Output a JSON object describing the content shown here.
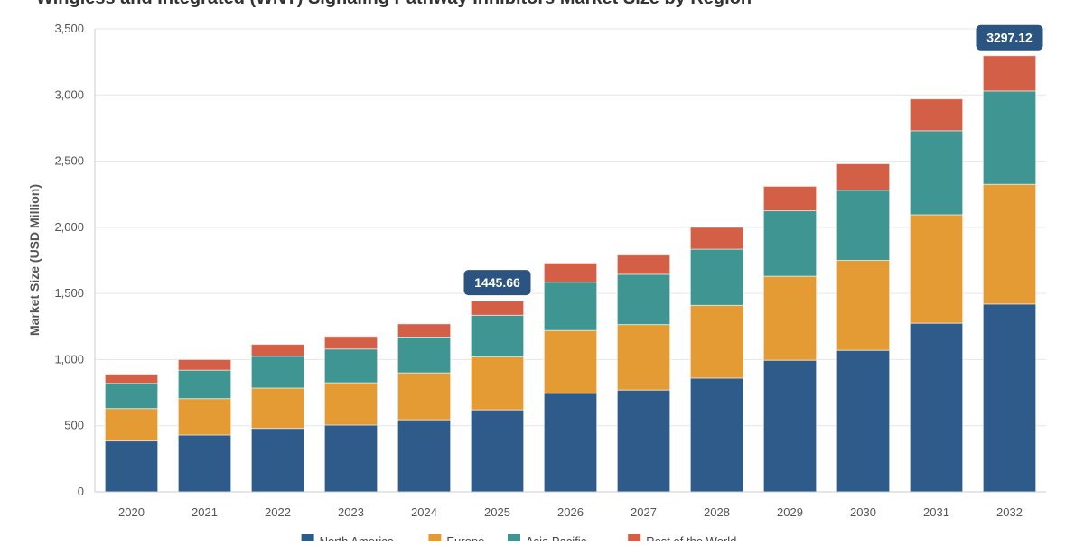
{
  "chart_data": {
    "type": "bar",
    "stacked": true,
    "title": "Wingless and Integrated (WNT) Signaling Pathway Inhibitors Market Size by Region",
    "xlabel": "",
    "ylabel": "Market Size (USD Million)",
    "ylim": [
      0,
      3500
    ],
    "yticks": [
      "0",
      "500",
      "1,000",
      "1,500",
      "2,000",
      "2,500",
      "3,000",
      "3,500"
    ],
    "ytick_values": [
      0,
      500,
      1000,
      1500,
      2000,
      2500,
      3000,
      3500
    ],
    "grid": true,
    "legend_position": "bottom",
    "categories": [
      "2020",
      "2021",
      "2022",
      "2023",
      "2024",
      "2025",
      "2026",
      "2027",
      "2028",
      "2029",
      "2030",
      "2031",
      "2032"
    ],
    "series": [
      {
        "name": "North America",
        "color": "#2e5b8a",
        "values": [
          385,
          430,
          480,
          505,
          545,
          620,
          745,
          770,
          860,
          995,
          1070,
          1275,
          1420
        ]
      },
      {
        "name": "Europe",
        "color": "#e59b33",
        "values": [
          245,
          275,
          305,
          320,
          355,
          400,
          475,
          495,
          550,
          635,
          680,
          820,
          905
        ]
      },
      {
        "name": "Asia Pacific",
        "color": "#3f9592",
        "values": [
          190,
          215,
          240,
          255,
          270,
          315,
          365,
          380,
          425,
          495,
          530,
          635,
          705
        ]
      },
      {
        "name": "Rest of the World",
        "color": "#d45f47",
        "values": [
          70,
          80,
          90,
          95,
          100,
          110,
          145,
          145,
          165,
          185,
          200,
          240,
          267
        ]
      }
    ],
    "annotations": [
      {
        "category": "2025",
        "value": 1445.66,
        "text": "1445.66"
      },
      {
        "category": "2032",
        "value": 3297.12,
        "text": "3297.12"
      }
    ]
  }
}
